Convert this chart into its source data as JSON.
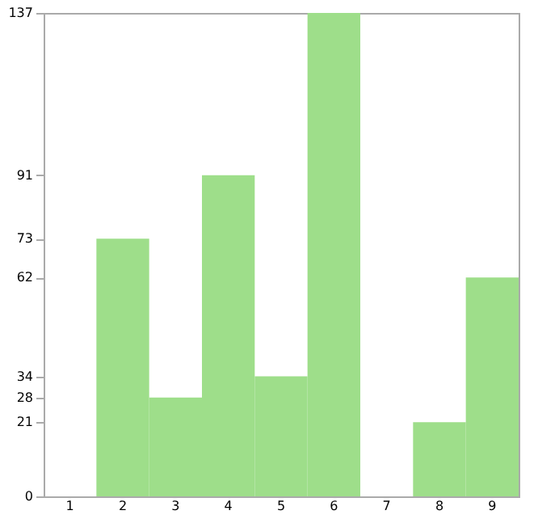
{
  "chart_data": {
    "type": "bar",
    "categories": [
      "1",
      "2",
      "3",
      "4",
      "5",
      "6",
      "7",
      "8",
      "9"
    ],
    "values": [
      0,
      73,
      28,
      91,
      34,
      137,
      0,
      21,
      62
    ],
    "color": "#9ede8a",
    "ylim": [
      0,
      137
    ],
    "yticks": [
      0,
      21,
      28,
      34,
      62,
      73,
      91,
      137
    ],
    "grid": false
  }
}
